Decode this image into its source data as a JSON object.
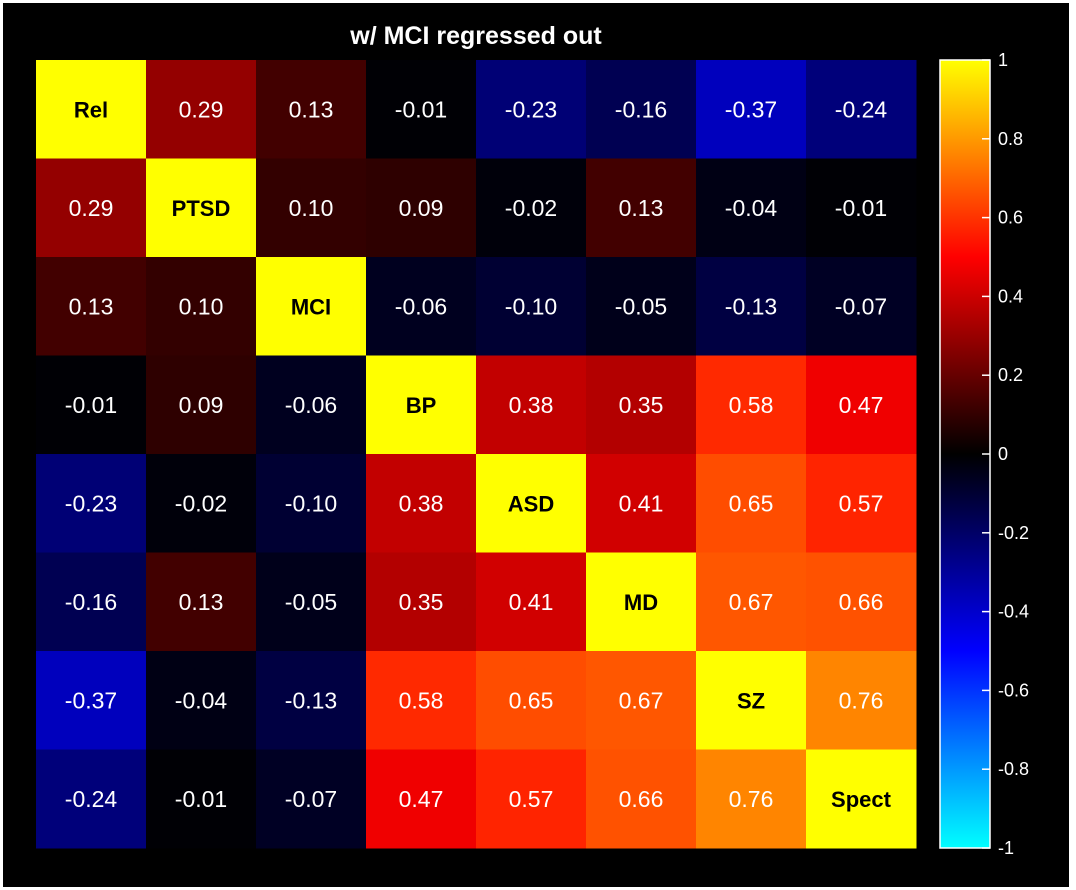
{
  "chart_data": {
    "type": "heatmap",
    "title": "w/ MCI regressed out",
    "labels": [
      "Rel",
      "PTSD",
      "MCI",
      "BP",
      "ASD",
      "MD",
      "SZ",
      "Spect"
    ],
    "values": [
      [
        1.0,
        0.29,
        0.13,
        -0.01,
        -0.23,
        -0.16,
        -0.37,
        -0.24
      ],
      [
        0.29,
        1.0,
        0.1,
        0.09,
        -0.02,
        0.13,
        -0.04,
        -0.01
      ],
      [
        0.13,
        0.1,
        1.0,
        -0.06,
        -0.1,
        -0.05,
        -0.13,
        -0.07
      ],
      [
        -0.01,
        0.09,
        -0.06,
        1.0,
        0.38,
        0.35,
        0.58,
        0.47
      ],
      [
        -0.23,
        -0.02,
        -0.1,
        0.38,
        1.0,
        0.41,
        0.65,
        0.57
      ],
      [
        -0.16,
        0.13,
        -0.05,
        0.35,
        0.41,
        1.0,
        0.67,
        0.66
      ],
      [
        -0.37,
        -0.04,
        -0.13,
        0.58,
        0.65,
        0.67,
        1.0,
        0.76
      ],
      [
        -0.24,
        -0.01,
        -0.07,
        0.47,
        0.57,
        0.66,
        0.76,
        1.0
      ]
    ],
    "colorbar": {
      "range": [
        -1,
        1
      ],
      "ticks": [
        "1",
        "0.8",
        "0.6",
        "0.4",
        "0.2",
        "0",
        "-0.2",
        "-0.4",
        "-0.6",
        "-0.8",
        "-1"
      ],
      "colormap_stops": [
        {
          "v": -1.0,
          "color": "#00ffff"
        },
        {
          "v": -0.5,
          "color": "#0000ff"
        },
        {
          "v": 0.0,
          "color": "#000000"
        },
        {
          "v": 0.5,
          "color": "#ff0000"
        },
        {
          "v": 0.75,
          "color": "#ff8000"
        },
        {
          "v": 1.0,
          "color": "#ffff00"
        }
      ]
    },
    "grid": false,
    "legend": "colorbar-right"
  }
}
